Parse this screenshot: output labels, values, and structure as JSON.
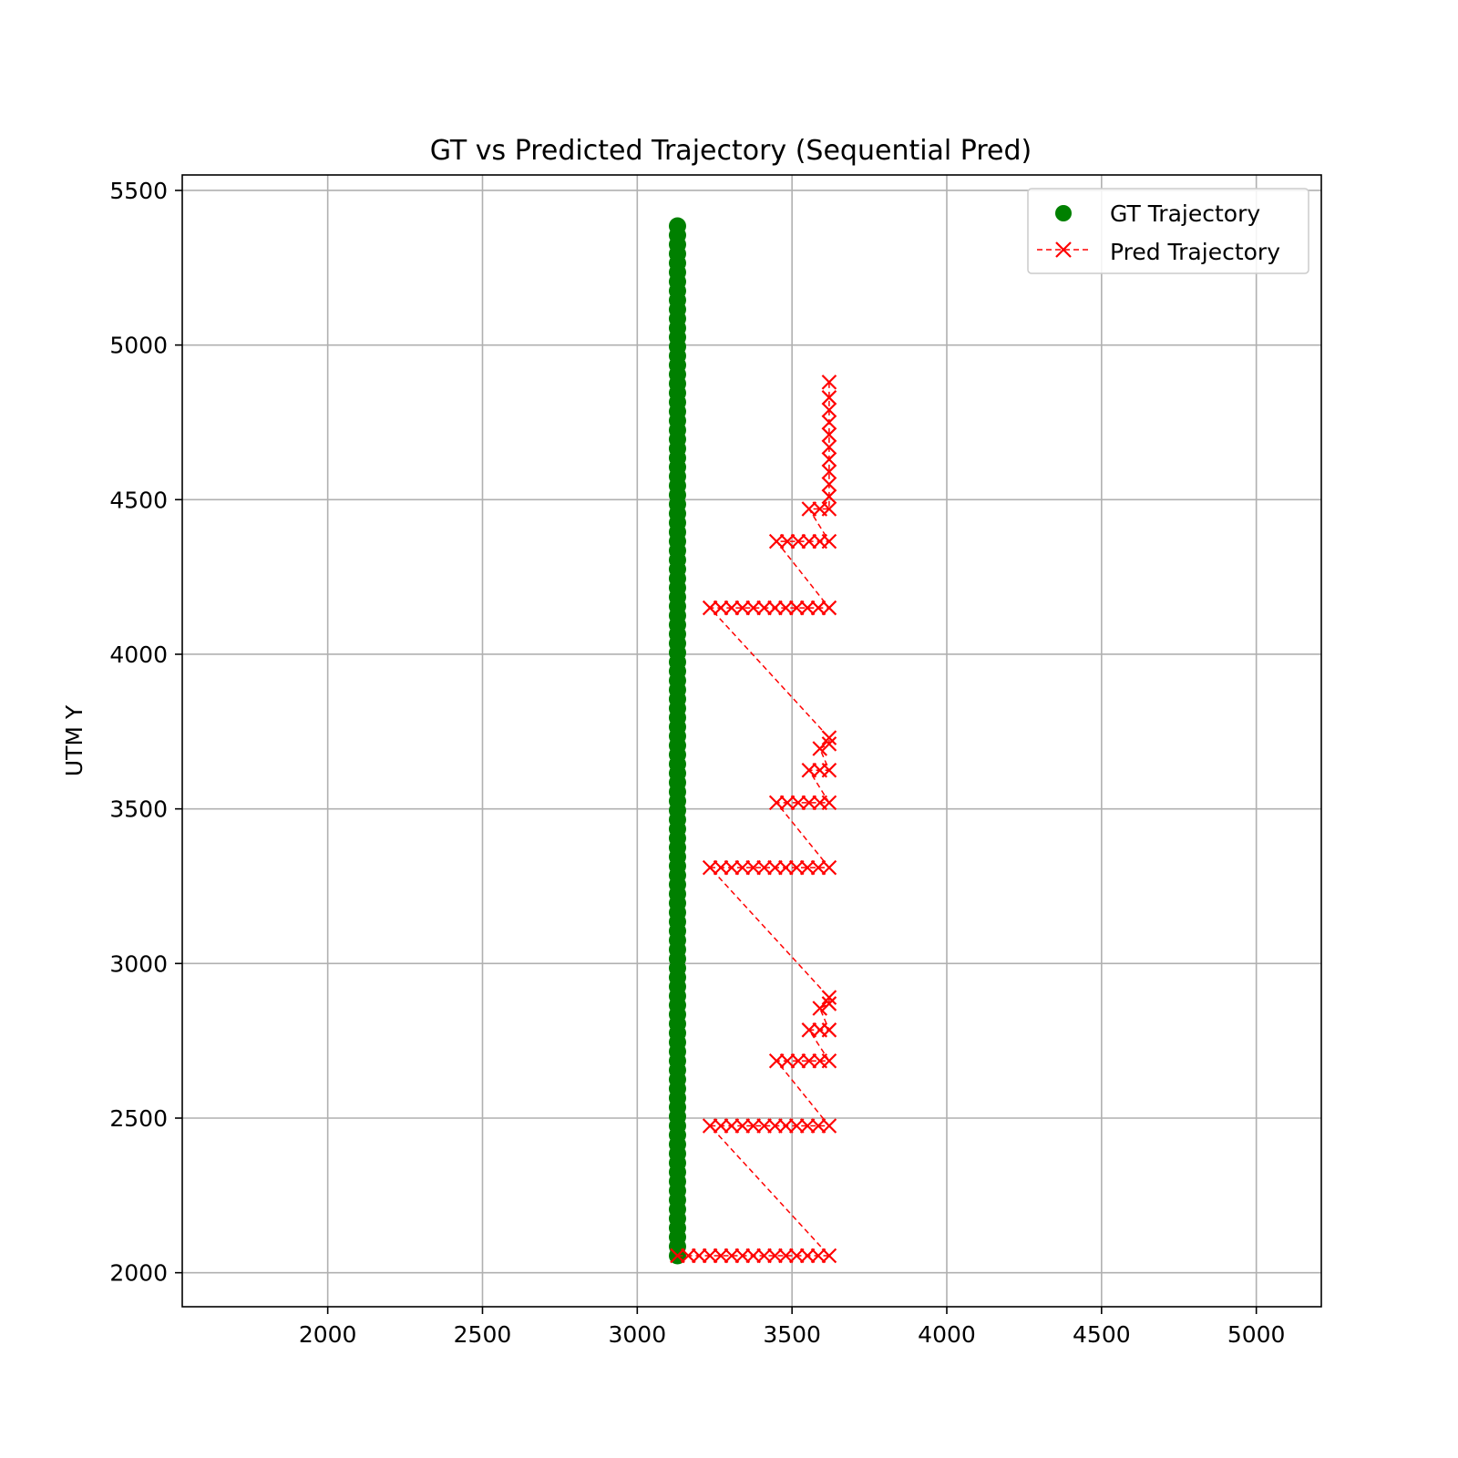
{
  "chart_data": {
    "type": "scatter",
    "title": "GT vs Predicted Trajectory (Sequential Pred)",
    "xlabel": "",
    "ylabel": "UTM Y",
    "xlim": [
      1530,
      5210
    ],
    "ylim": [
      1890,
      5550
    ],
    "xticks": [
      2000,
      2500,
      3000,
      3500,
      4000,
      4500,
      5000
    ],
    "yticks": [
      2000,
      2500,
      3000,
      3500,
      4000,
      4500,
      5000,
      5500
    ],
    "grid": true,
    "legend_position": "top-right",
    "legend": [
      "GT Trajectory",
      "Pred Trajectory"
    ],
    "colors": {
      "gt": "#008000",
      "pred": "#ff0000"
    },
    "series": [
      {
        "name": "GT Trajectory",
        "style": "scatter-circle",
        "x_constant": 3130,
        "y_start": 2055,
        "y_end": 5385,
        "y_step": 30
      },
      {
        "name": "Pred Trajectory",
        "style": "dashed-line-x-marker",
        "points": [
          [
            3130,
            2055
          ],
          [
            3165,
            2055
          ],
          [
            3200,
            2055
          ],
          [
            3235,
            2055
          ],
          [
            3270,
            2055
          ],
          [
            3305,
            2055
          ],
          [
            3340,
            2055
          ],
          [
            3375,
            2055
          ],
          [
            3410,
            2055
          ],
          [
            3445,
            2055
          ],
          [
            3480,
            2055
          ],
          [
            3515,
            2055
          ],
          [
            3550,
            2055
          ],
          [
            3585,
            2055
          ],
          [
            3620,
            2055
          ],
          [
            3235,
            2475
          ],
          [
            3270,
            2475
          ],
          [
            3305,
            2475
          ],
          [
            3340,
            2475
          ],
          [
            3375,
            2475
          ],
          [
            3410,
            2475
          ],
          [
            3445,
            2475
          ],
          [
            3480,
            2475
          ],
          [
            3515,
            2475
          ],
          [
            3550,
            2475
          ],
          [
            3585,
            2475
          ],
          [
            3620,
            2475
          ],
          [
            3450,
            2685
          ],
          [
            3485,
            2685
          ],
          [
            3520,
            2685
          ],
          [
            3555,
            2685
          ],
          [
            3590,
            2685
          ],
          [
            3620,
            2685
          ],
          [
            3555,
            2785
          ],
          [
            3590,
            2785
          ],
          [
            3620,
            2785
          ],
          [
            3590,
            2855
          ],
          [
            3620,
            2870
          ],
          [
            3620,
            2890
          ],
          [
            3235,
            3310
          ],
          [
            3270,
            3310
          ],
          [
            3305,
            3310
          ],
          [
            3340,
            3310
          ],
          [
            3375,
            3310
          ],
          [
            3410,
            3310
          ],
          [
            3445,
            3310
          ],
          [
            3480,
            3310
          ],
          [
            3515,
            3310
          ],
          [
            3550,
            3310
          ],
          [
            3585,
            3310
          ],
          [
            3620,
            3310
          ],
          [
            3450,
            3520
          ],
          [
            3485,
            3520
          ],
          [
            3520,
            3520
          ],
          [
            3555,
            3520
          ],
          [
            3590,
            3520
          ],
          [
            3620,
            3520
          ],
          [
            3555,
            3625
          ],
          [
            3590,
            3625
          ],
          [
            3620,
            3625
          ],
          [
            3590,
            3695
          ],
          [
            3620,
            3710
          ],
          [
            3620,
            3730
          ],
          [
            3235,
            4150
          ],
          [
            3270,
            4150
          ],
          [
            3305,
            4150
          ],
          [
            3340,
            4150
          ],
          [
            3375,
            4150
          ],
          [
            3410,
            4150
          ],
          [
            3445,
            4150
          ],
          [
            3480,
            4150
          ],
          [
            3515,
            4150
          ],
          [
            3550,
            4150
          ],
          [
            3585,
            4150
          ],
          [
            3620,
            4150
          ],
          [
            3450,
            4365
          ],
          [
            3485,
            4365
          ],
          [
            3520,
            4365
          ],
          [
            3555,
            4365
          ],
          [
            3590,
            4365
          ],
          [
            3620,
            4365
          ],
          [
            3555,
            4470
          ],
          [
            3590,
            4470
          ],
          [
            3620,
            4470
          ],
          [
            3620,
            4510
          ],
          [
            3620,
            4550
          ],
          [
            3620,
            4590
          ],
          [
            3620,
            4630
          ],
          [
            3620,
            4670
          ],
          [
            3620,
            4710
          ],
          [
            3620,
            4750
          ],
          [
            3620,
            4790
          ],
          [
            3620,
            4830
          ],
          [
            3620,
            4880
          ]
        ]
      }
    ]
  }
}
